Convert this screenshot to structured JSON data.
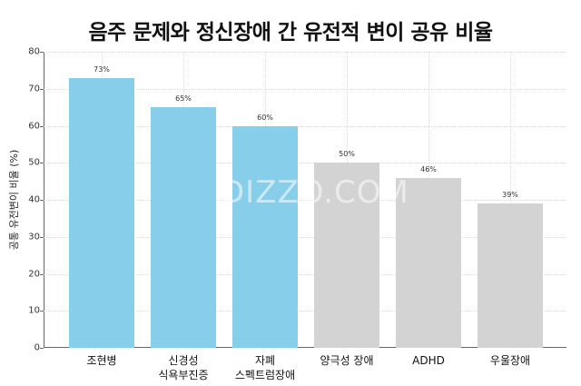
{
  "chart_data": {
    "type": "bar",
    "title": "음주 문제와 정신장애 간 유전적 변이 공유 비율",
    "xlabel": "",
    "ylabel": "공통 유전변이 비율 (%)",
    "ylim": [
      0,
      80
    ],
    "yticks": [
      0,
      10,
      20,
      30,
      40,
      50,
      60,
      70,
      80
    ],
    "grid": true,
    "legend": null,
    "categories": [
      "조현병",
      "신경성\n식욕부진증",
      "자폐\n스펙트럼장애",
      "양극성 장애",
      "ADHD",
      "우울장애"
    ],
    "values": [
      73,
      65,
      60,
      50,
      46,
      39
    ],
    "data_labels": [
      "73%",
      "65%",
      "60%",
      "50%",
      "46%",
      "39%"
    ],
    "colors": [
      "#87ceeb",
      "#87ceeb",
      "#87ceeb",
      "#d3d3d3",
      "#d3d3d3",
      "#d3d3d3"
    ]
  },
  "watermark": "DIZZO.COM",
  "x_labels": [
    {
      "line1": "조현병",
      "line2": ""
    },
    {
      "line1": "신경성",
      "line2": "식욕부진증"
    },
    {
      "line1": "자폐",
      "line2": "스펙트럼장애"
    },
    {
      "line1": "양극성 장애",
      "line2": ""
    },
    {
      "line1": "ADHD",
      "line2": ""
    },
    {
      "line1": "우울장애",
      "line2": ""
    }
  ]
}
